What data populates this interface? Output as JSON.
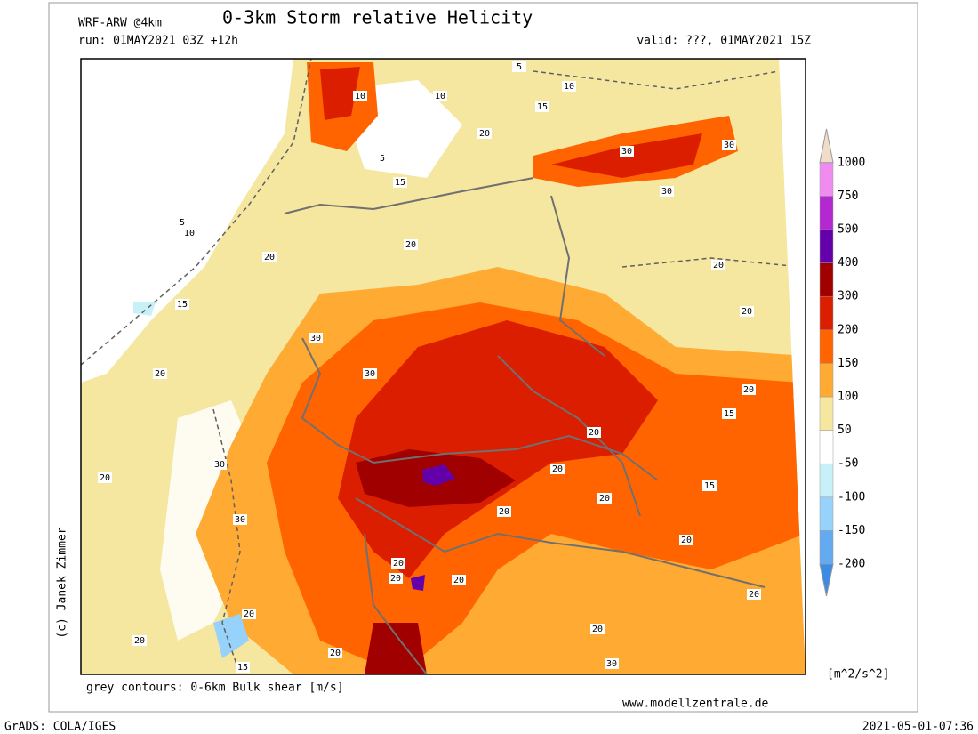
{
  "header": {
    "model": "WRF-ARW @4km",
    "title": "0-3km Storm relative Helicity",
    "run": "run: 01MAY2021 03Z +12h",
    "valid": "valid: ???, 01MAY2021 15Z"
  },
  "map": {
    "contour_labels": [
      "10",
      "10",
      "5",
      "15",
      "10",
      "20",
      "5",
      "15",
      "5",
      "10",
      "20",
      "20",
      "15",
      "30",
      "30",
      "30",
      "20",
      "20",
      "30",
      "30",
      "20",
      "20",
      "15",
      "20",
      "20",
      "30",
      "20",
      "15",
      "20",
      "30",
      "20",
      "20",
      "20",
      "20",
      "20",
      "20",
      "20",
      "20",
      "20",
      "20",
      "15",
      "30"
    ]
  },
  "credit": "(c) Janek Zimmer",
  "footer": {
    "contours_note": "grey contours: 0-6km Bulk shear [m/s]",
    "website": "www.modellzentrale.de",
    "software": "GrADS: COLA/IGES",
    "timestamp": "2021-05-01-07:36"
  },
  "colorbar": {
    "unit": "[m^2/s^2]",
    "levels": [
      -200,
      -150,
      -100,
      -50,
      50,
      100,
      150,
      200,
      300,
      400,
      500,
      750,
      1000
    ],
    "colors": [
      "#3c8ce6",
      "#64aaf0",
      "#96d2fa",
      "#c8f0f8",
      "#ffffff",
      "#f5e6a0",
      "#ffaa32",
      "#ff6400",
      "#dc1e00",
      "#a00000",
      "#6400aa",
      "#b428d2",
      "#f08cf0",
      "#f0dcc8"
    ]
  }
}
